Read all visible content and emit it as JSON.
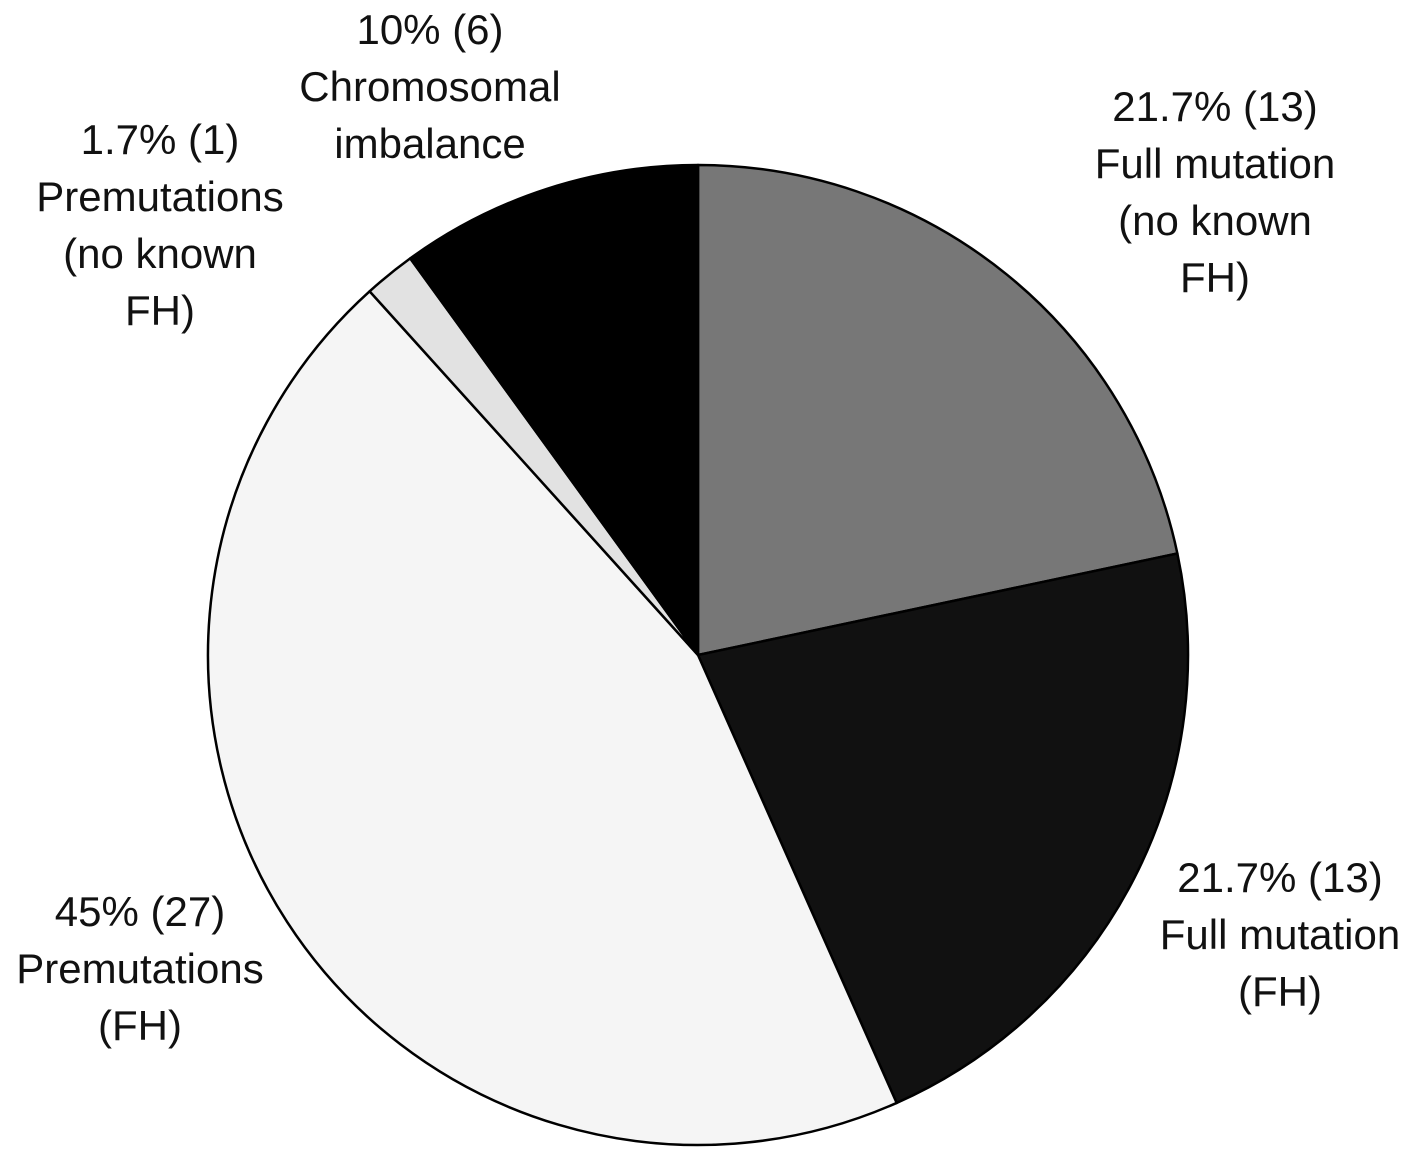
{
  "chart_data": {
    "type": "pie",
    "categories": [
      "Full mutation (no known FH)",
      "Full mutation (FH)",
      "Premutations (FH)",
      "Premutations (no known FH)",
      "Chromosomal imbalance"
    ],
    "values": [
      21.7,
      21.7,
      45,
      1.7,
      10
    ],
    "value_labels": [
      "21.7% (13)",
      "21.7% (13)",
      "45% (27)",
      "1.7% (1)",
      "10% (6)"
    ],
    "colors": [
      "#777777",
      "#111111",
      "#f5f5f5",
      "#e2e2e2",
      "#000000"
    ]
  }
}
